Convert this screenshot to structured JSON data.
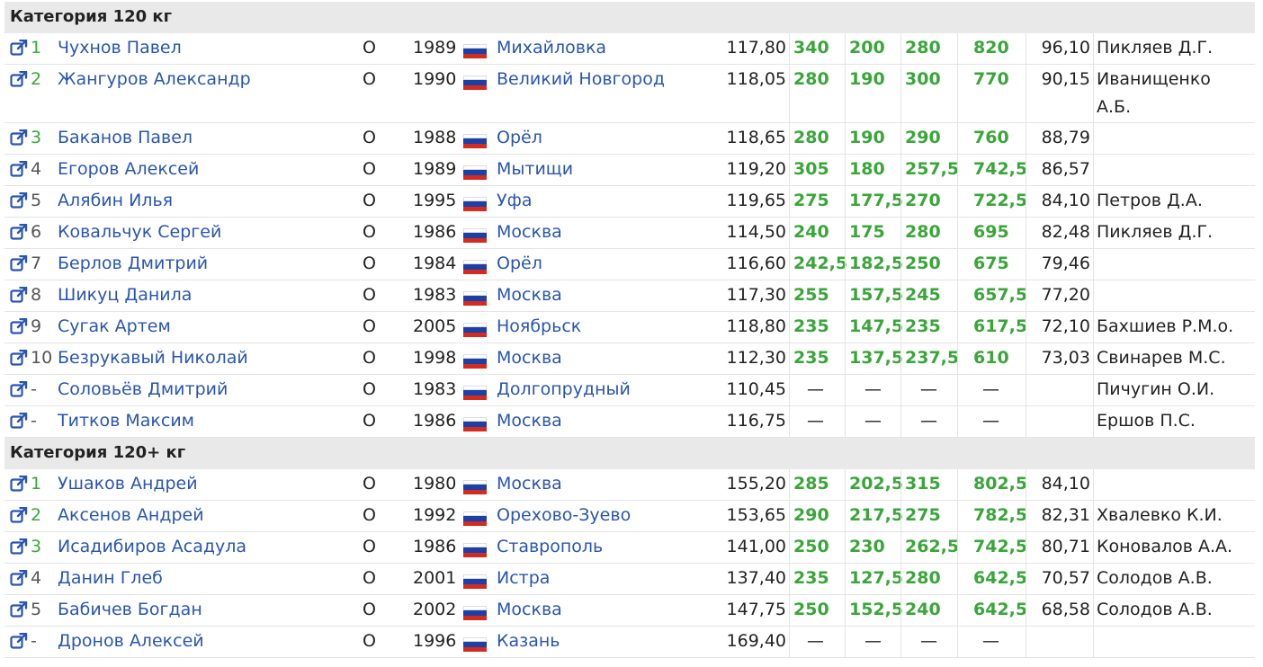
{
  "icons": {
    "external_link": "external-link-icon",
    "flag": "russia-flag-icon"
  },
  "colors": {
    "link": "#2a55b0",
    "good_lift": "#3aa63a",
    "header_bg": "#e9e9e9",
    "flag_white": "#ffffff",
    "flag_blue": "#1c3fa8",
    "flag_red": "#d52b1e"
  },
  "dash": "—",
  "categories": [
    {
      "title": "Категория 120 кг",
      "rows": [
        {
          "place": "1",
          "name": "Чухнов Павел",
          "div": "О",
          "year": "1989",
          "city": "Михайловка",
          "bw": "117,80",
          "sq": "340",
          "bp": "200",
          "dl": "280",
          "total": "820",
          "points": "96,10",
          "coach": "Пикляев Д.Г.",
          "coach2": ""
        },
        {
          "place": "2",
          "name": "Жангуров Александр",
          "div": "О",
          "year": "1990",
          "city": "Великий Новгород",
          "bw": "118,05",
          "sq": "280",
          "bp": "190",
          "dl": "300",
          "total": "770",
          "points": "90,15",
          "coach": "Иванищенко",
          "coach2": "А.Б."
        },
        {
          "place": "3",
          "name": "Баканов Павел",
          "div": "О",
          "year": "1988",
          "city": "Орёл",
          "bw": "118,65",
          "sq": "280",
          "bp": "190",
          "dl": "290",
          "total": "760",
          "points": "88,79",
          "coach": "",
          "coach2": ""
        },
        {
          "place": "4",
          "name": "Егоров Алексей",
          "div": "О",
          "year": "1989",
          "city": "Мытищи",
          "bw": "119,20",
          "sq": "305",
          "bp": "180",
          "dl": "257,5",
          "total": "742,5",
          "points": "86,57",
          "coach": "",
          "coach2": ""
        },
        {
          "place": "5",
          "name": "Алябин Илья",
          "div": "О",
          "year": "1995",
          "city": "Уфа",
          "bw": "119,65",
          "sq": "275",
          "bp": "177,5",
          "dl": "270",
          "total": "722,5",
          "points": "84,10",
          "coach": "Петров Д.А.",
          "coach2": ""
        },
        {
          "place": "6",
          "name": "Ковальчук Сергей",
          "div": "О",
          "year": "1986",
          "city": "Москва",
          "bw": "114,50",
          "sq": "240",
          "bp": "175",
          "dl": "280",
          "total": "695",
          "points": "82,48",
          "coach": "Пикляев Д.Г.",
          "coach2": ""
        },
        {
          "place": "7",
          "name": "Берлов Дмитрий",
          "div": "О",
          "year": "1984",
          "city": "Орёл",
          "bw": "116,60",
          "sq": "242,5",
          "bp": "182,5",
          "dl": "250",
          "total": "675",
          "points": "79,46",
          "coach": "",
          "coach2": ""
        },
        {
          "place": "8",
          "name": "Шикуц Данила",
          "div": "О",
          "year": "1983",
          "city": "Москва",
          "bw": "117,30",
          "sq": "255",
          "bp": "157,5",
          "dl": "245",
          "total": "657,5",
          "points": "77,20",
          "coach": "",
          "coach2": ""
        },
        {
          "place": "9",
          "name": "Сугак Артем",
          "div": "О",
          "year": "2005",
          "city": "Ноябрьск",
          "bw": "118,80",
          "sq": "235",
          "bp": "147,5",
          "dl": "235",
          "total": "617,5",
          "points": "72,10",
          "coach": "Бахшиев Р.М.о.",
          "coach2": ""
        },
        {
          "place": "10",
          "name": "Безрукавый Николай",
          "div": "О",
          "year": "1998",
          "city": "Москва",
          "bw": "112,30",
          "sq": "235",
          "bp": "137,5",
          "dl": "237,5",
          "total": "610",
          "points": "73,03",
          "coach": "Свинарев М.С.",
          "coach2": ""
        },
        {
          "place": "-",
          "name": "Соловьёв Дмитрий",
          "div": "О",
          "year": "1983",
          "city": "Долгопрудный",
          "bw": "110,45",
          "sq": "—",
          "bp": "—",
          "dl": "—",
          "total": "—",
          "points": "",
          "coach": "Пичугин О.И.",
          "coach2": ""
        },
        {
          "place": "-",
          "name": "Титков Максим",
          "div": "О",
          "year": "1986",
          "city": "Москва",
          "bw": "116,75",
          "sq": "—",
          "bp": "—",
          "dl": "—",
          "total": "—",
          "points": "",
          "coach": "Ершов П.С.",
          "coach2": ""
        }
      ]
    },
    {
      "title": "Категория 120+ кг",
      "rows": [
        {
          "place": "1",
          "name": "Ушаков Андрей",
          "div": "О",
          "year": "1980",
          "city": "Москва",
          "bw": "155,20",
          "sq": "285",
          "bp": "202,5",
          "dl": "315",
          "total": "802,5",
          "points": "84,10",
          "coach": "",
          "coach2": ""
        },
        {
          "place": "2",
          "name": "Аксенов Андрей",
          "div": "О",
          "year": "1992",
          "city": "Орехово-Зуево",
          "bw": "153,65",
          "sq": "290",
          "bp": "217,5",
          "dl": "275",
          "total": "782,5",
          "points": "82,31",
          "coach": "Хвалевко К.И.",
          "coach2": ""
        },
        {
          "place": "3",
          "name": "Исадибиров Асадула",
          "div": "О",
          "year": "1986",
          "city": "Ставрополь",
          "bw": "141,00",
          "sq": "250",
          "bp": "230",
          "dl": "262,5",
          "total": "742,5",
          "points": "80,71",
          "coach": "Коновалов А.А.",
          "coach2": ""
        },
        {
          "place": "4",
          "name": "Данин Глеб",
          "div": "О",
          "year": "2001",
          "city": "Истра",
          "bw": "137,40",
          "sq": "235",
          "bp": "127,5",
          "dl": "280",
          "total": "642,5",
          "points": "70,57",
          "coach": "Солодов А.В.",
          "coach2": ""
        },
        {
          "place": "5",
          "name": "Бабичев Богдан",
          "div": "О",
          "year": "2002",
          "city": "Москва",
          "bw": "147,75",
          "sq": "250",
          "bp": "152,5",
          "dl": "240",
          "total": "642,5",
          "points": "68,58",
          "coach": "Солодов А.В.",
          "coach2": ""
        },
        {
          "place": "-",
          "name": "Дронов Алексей",
          "div": "О",
          "year": "1996",
          "city": "Казань",
          "bw": "169,40",
          "sq": "—",
          "bp": "—",
          "dl": "—",
          "total": "—",
          "points": "",
          "coach": "",
          "coach2": ""
        }
      ]
    }
  ]
}
